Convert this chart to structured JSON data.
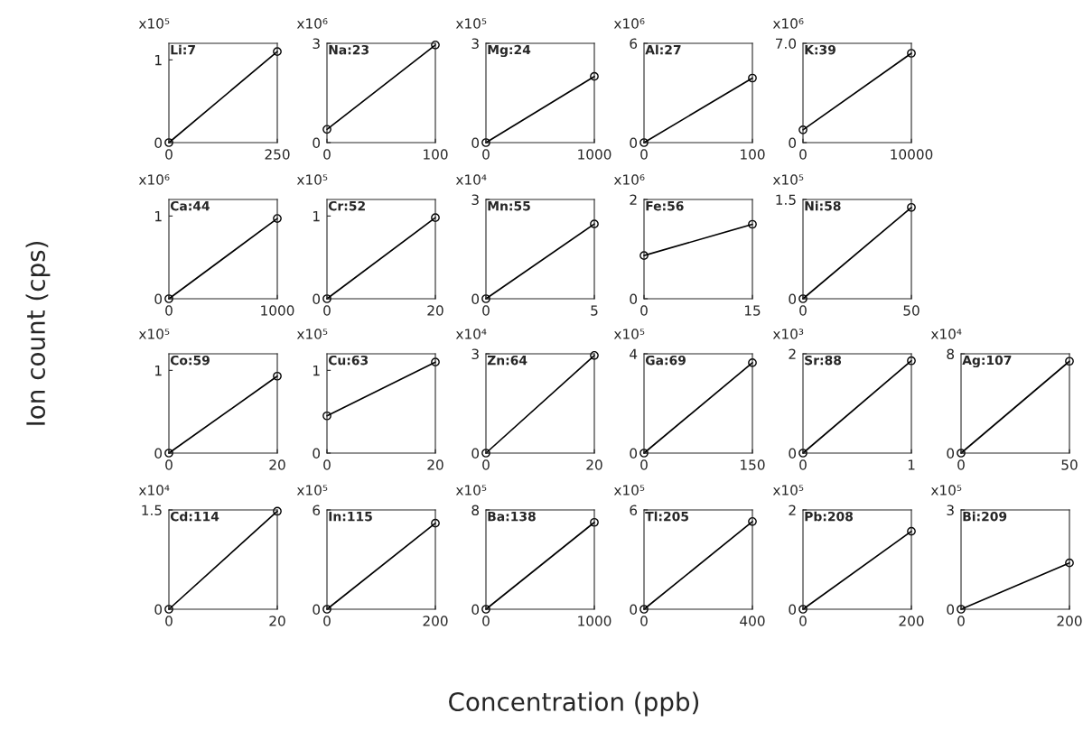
{
  "chart_data": [
    {
      "type": "line",
      "title": "Li:7",
      "annotations": [
        "x10⁵"
      ],
      "x": [
        0,
        250
      ],
      "xlim": [
        0,
        250
      ],
      "xticks": [
        0,
        250
      ],
      "ylim": [
        0,
        1.2
      ],
      "yticks": [
        0,
        1
      ],
      "marker": "circle",
      "series": [
        {
          "color": "#000000",
          "values": [
            0,
            1.1
          ]
        }
      ]
    },
    {
      "type": "line",
      "title": "Na:23",
      "annotations": [
        "x10⁶"
      ],
      "x": [
        0,
        100
      ],
      "xlim": [
        0,
        100
      ],
      "xticks": [
        0,
        100
      ],
      "ylim": [
        0,
        3
      ],
      "yticks": [
        0,
        3
      ],
      "marker": "circle",
      "series": [
        {
          "color": "#000000",
          "values": [
            0.4,
            2.95
          ]
        }
      ]
    },
    {
      "type": "line",
      "title": "Mg:24",
      "annotations": [
        "x10⁵"
      ],
      "x": [
        0,
        1000
      ],
      "xlim": [
        0,
        1000
      ],
      "xticks": [
        0,
        1000
      ],
      "ylim": [
        0,
        3
      ],
      "yticks": [
        0,
        3
      ],
      "marker": "circle",
      "series": [
        {
          "color": "#000000",
          "values": [
            0,
            2.0
          ]
        }
      ]
    },
    {
      "type": "line",
      "title": "Al:27",
      "annotations": [
        "x10⁶"
      ],
      "x": [
        0,
        100
      ],
      "xlim": [
        0,
        100
      ],
      "xticks": [
        0,
        100
      ],
      "ylim": [
        0,
        6
      ],
      "yticks": [
        0,
        6
      ],
      "marker": "circle",
      "series": [
        {
          "color": "#000000",
          "values": [
            0,
            3.9
          ]
        }
      ]
    },
    {
      "type": "line",
      "title": "K:39",
      "annotations": [
        "x10⁶"
      ],
      "x": [
        0,
        10000
      ],
      "xlim": [
        0,
        10000
      ],
      "xticks": [
        0,
        10000
      ],
      "ylim": [
        0,
        7
      ],
      "yticks": [
        0,
        {
          "value": 7,
          "label": "7.0"
        }
      ],
      "marker": "circle",
      "series": [
        {
          "color": "#000000",
          "values": [
            0.9,
            6.3
          ]
        }
      ]
    },
    {
      "type": "line",
      "title": "Ca:44",
      "annotations": [
        "x10⁶"
      ],
      "x": [
        0,
        1000
      ],
      "xlim": [
        0,
        1000
      ],
      "xticks": [
        0,
        1000
      ],
      "ylim": [
        0,
        1.2
      ],
      "yticks": [
        0,
        1
      ],
      "marker": "circle",
      "series": [
        {
          "color": "#000000",
          "values": [
            0,
            0.97
          ]
        }
      ]
    },
    {
      "type": "line",
      "title": "Cr:52",
      "annotations": [
        "x10⁵"
      ],
      "x": [
        0,
        20
      ],
      "xlim": [
        0,
        20
      ],
      "xticks": [
        0,
        20
      ],
      "ylim": [
        0,
        1.2
      ],
      "yticks": [
        0,
        1
      ],
      "marker": "circle",
      "series": [
        {
          "color": "#000000",
          "values": [
            0,
            0.98
          ]
        }
      ]
    },
    {
      "type": "line",
      "title": "Mn:55",
      "annotations": [
        "x10⁴"
      ],
      "x": [
        0,
        5
      ],
      "xlim": [
        0,
        5
      ],
      "xticks": [
        0,
        5
      ],
      "ylim": [
        0,
        3
      ],
      "yticks": [
        0,
        3
      ],
      "marker": "circle",
      "series": [
        {
          "color": "#000000",
          "values": [
            0,
            2.26
          ]
        }
      ]
    },
    {
      "type": "line",
      "title": "Fe:56",
      "annotations": [
        "x10⁶"
      ],
      "x": [
        0,
        15
      ],
      "xlim": [
        0,
        15
      ],
      "xticks": [
        0,
        15
      ],
      "ylim": [
        0,
        2
      ],
      "yticks": [
        0,
        2
      ],
      "marker": "circle",
      "series": [
        {
          "color": "#000000",
          "values": [
            0.87,
            1.5
          ]
        }
      ]
    },
    {
      "type": "line",
      "title": "Ni:58",
      "annotations": [
        "x10⁵"
      ],
      "x": [
        0,
        50
      ],
      "xlim": [
        0,
        50
      ],
      "xticks": [
        0,
        50
      ],
      "ylim": [
        0,
        1.5
      ],
      "yticks": [
        0,
        1.5
      ],
      "marker": "circle",
      "series": [
        {
          "color": "#000000",
          "values": [
            0,
            1.38
          ]
        }
      ]
    },
    {
      "type": "line",
      "title": "Co:59",
      "annotations": [
        "x10⁵"
      ],
      "x": [
        0,
        20
      ],
      "xlim": [
        0,
        20
      ],
      "xticks": [
        0,
        20
      ],
      "ylim": [
        0,
        1.2
      ],
      "yticks": [
        0,
        1
      ],
      "marker": "circle",
      "series": [
        {
          "color": "#000000",
          "values": [
            0,
            0.93
          ]
        }
      ]
    },
    {
      "type": "line",
      "title": "Cu:63",
      "annotations": [
        "x10⁵"
      ],
      "x": [
        0,
        20
      ],
      "xlim": [
        0,
        20
      ],
      "xticks": [
        0,
        20
      ],
      "ylim": [
        0,
        1.2
      ],
      "yticks": [
        0,
        1
      ],
      "marker": "circle",
      "series": [
        {
          "color": "#000000",
          "values": [
            0.45,
            1.1
          ]
        }
      ]
    },
    {
      "type": "line",
      "title": "Zn:64",
      "annotations": [
        "x10⁴"
      ],
      "x": [
        0,
        20
      ],
      "xlim": [
        0,
        20
      ],
      "xticks": [
        0,
        20
      ],
      "ylim": [
        0,
        3
      ],
      "yticks": [
        0,
        3
      ],
      "marker": "circle",
      "series": [
        {
          "color": "#000000",
          "values": [
            0,
            2.95
          ]
        }
      ]
    },
    {
      "type": "line",
      "title": "Ga:69",
      "annotations": [
        "x10⁵"
      ],
      "x": [
        0,
        150
      ],
      "xlim": [
        0,
        150
      ],
      "xticks": [
        0,
        150
      ],
      "ylim": [
        0,
        4
      ],
      "yticks": [
        0,
        4
      ],
      "marker": "circle",
      "series": [
        {
          "color": "#000000",
          "values": [
            0,
            3.64
          ]
        }
      ]
    },
    {
      "type": "line",
      "title": "Sr:88",
      "annotations": [
        "x10³"
      ],
      "x": [
        0,
        1
      ],
      "xlim": [
        0,
        1
      ],
      "xticks": [
        0,
        1
      ],
      "ylim": [
        0,
        2
      ],
      "yticks": [
        0,
        2
      ],
      "marker": "circle",
      "series": [
        {
          "color": "#000000",
          "values": [
            0,
            1.86
          ]
        }
      ]
    },
    {
      "type": "line",
      "title": "Ag:107",
      "annotations": [
        "x10⁴"
      ],
      "x": [
        0,
        50
      ],
      "xlim": [
        0,
        50
      ],
      "xticks": [
        0,
        50
      ],
      "ylim": [
        0,
        8
      ],
      "yticks": [
        0,
        8
      ],
      "marker": "circle",
      "series": [
        {
          "color": "#000000",
          "values": [
            0,
            7.4
          ]
        }
      ]
    },
    {
      "type": "line",
      "title": "Cd:114",
      "annotations": [
        "x10⁴"
      ],
      "x": [
        0,
        20
      ],
      "xlim": [
        0,
        20
      ],
      "xticks": [
        0,
        20
      ],
      "ylim": [
        0,
        1.5
      ],
      "yticks": [
        0,
        1.5
      ],
      "marker": "circle",
      "series": [
        {
          "color": "#000000",
          "values": [
            0,
            1.48
          ]
        }
      ]
    },
    {
      "type": "line",
      "title": "In:115",
      "annotations": [
        "x10⁵"
      ],
      "x": [
        0,
        200
      ],
      "xlim": [
        0,
        200
      ],
      "xticks": [
        0,
        200
      ],
      "ylim": [
        0,
        6
      ],
      "yticks": [
        0,
        6
      ],
      "marker": "circle",
      "series": [
        {
          "color": "#000000",
          "values": [
            0,
            5.2
          ]
        }
      ]
    },
    {
      "type": "line",
      "title": "Ba:138",
      "annotations": [
        "x10⁵"
      ],
      "x": [
        0,
        1000
      ],
      "xlim": [
        0,
        1000
      ],
      "xticks": [
        0,
        1000
      ],
      "ylim": [
        0,
        8
      ],
      "yticks": [
        0,
        8
      ],
      "marker": "circle",
      "series": [
        {
          "color": "#000000",
          "values": [
            0,
            7.0
          ]
        }
      ]
    },
    {
      "type": "line",
      "title": "Tl:205",
      "annotations": [
        "x10⁵"
      ],
      "x": [
        0,
        400
      ],
      "xlim": [
        0,
        400
      ],
      "xticks": [
        0,
        400
      ],
      "ylim": [
        0,
        6
      ],
      "yticks": [
        0,
        6
      ],
      "marker": "circle",
      "series": [
        {
          "color": "#000000",
          "values": [
            0,
            5.3
          ]
        }
      ]
    },
    {
      "type": "line",
      "title": "Pb:208",
      "annotations": [
        "x10⁵"
      ],
      "x": [
        0,
        200
      ],
      "xlim": [
        0,
        200
      ],
      "xticks": [
        0,
        200
      ],
      "ylim": [
        0,
        2
      ],
      "yticks": [
        0,
        2
      ],
      "marker": "circle",
      "series": [
        {
          "color": "#000000",
          "values": [
            0,
            1.57
          ]
        }
      ]
    },
    {
      "type": "line",
      "title": "Bi:209",
      "annotations": [
        "x10⁵"
      ],
      "x": [
        0,
        200
      ],
      "xlim": [
        0,
        200
      ],
      "xticks": [
        0,
        200
      ],
      "ylim": [
        0,
        3
      ],
      "yticks": [
        0,
        3
      ],
      "marker": "circle",
      "series": [
        {
          "color": "#000000",
          "values": [
            0,
            1.4
          ]
        }
      ]
    },
    {
      "type": "other",
      "xlabel": "Concentration (ppb)",
      "ylabel": "Ion count (cps)"
    }
  ]
}
